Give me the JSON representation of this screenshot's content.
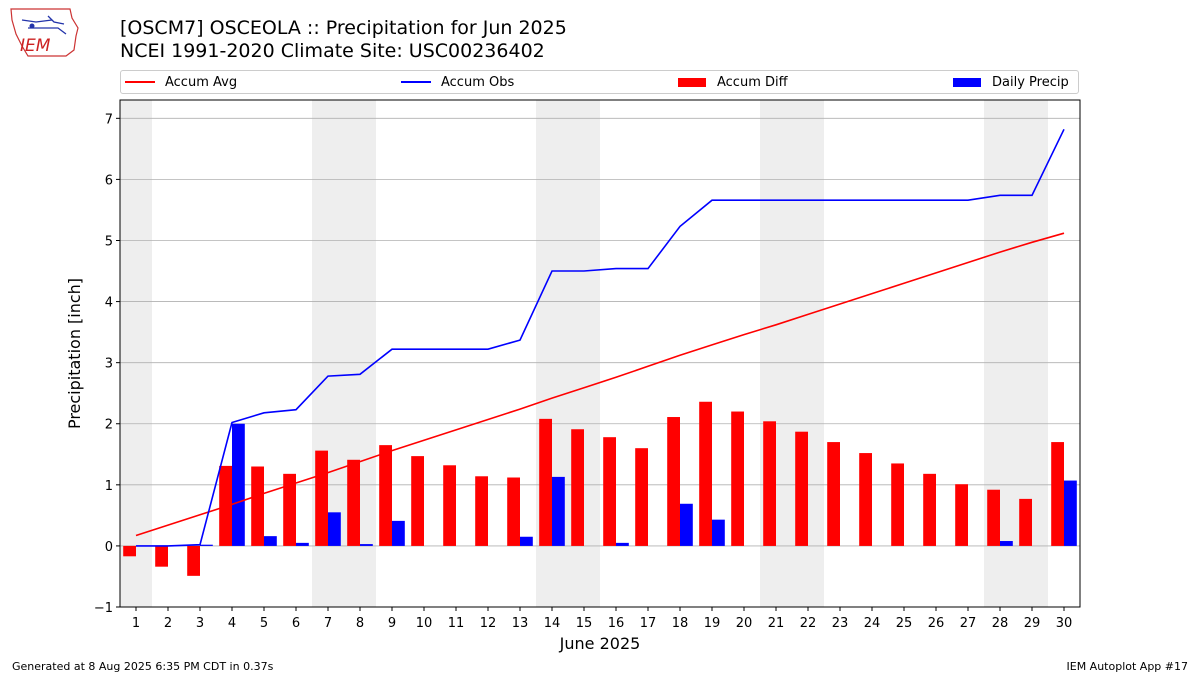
{
  "header": {
    "title_line1": "[OSCM7] OSCEOLA :: Precipitation for Jun 2025",
    "title_line2": "NCEI 1991-2020 Climate Site: USC00236402",
    "logo_text": "IEM"
  },
  "footer": {
    "left": "Generated at 8 Aug 2025 6:35 PM CDT in 0.37s",
    "right": "IEM Autoplot App #17"
  },
  "colors": {
    "accum_avg": "#ff0000",
    "accum_obs": "#0000ff",
    "accum_diff": "#ff0000",
    "daily_precip": "#0000ff",
    "weekend_shade": "#eeeeee",
    "grid": "#b0b0b0"
  },
  "chart_data": {
    "type": "bar",
    "xlabel": "June 2025",
    "ylabel": "Precipitation [inch]",
    "xlim": [
      0.5,
      30.5
    ],
    "ylim": [
      -1.0,
      7.3
    ],
    "yticks": [
      -1,
      0,
      1,
      2,
      3,
      4,
      5,
      6,
      7
    ],
    "ytick_labels": [
      "−1",
      "0",
      "1",
      "2",
      "3",
      "4",
      "5",
      "6",
      "7"
    ],
    "grid": "horizontal",
    "legend_placement": "top",
    "days": [
      1,
      2,
      3,
      4,
      5,
      6,
      7,
      8,
      9,
      10,
      11,
      12,
      13,
      14,
      15,
      16,
      17,
      18,
      19,
      20,
      21,
      22,
      23,
      24,
      25,
      26,
      27,
      28,
      29,
      30
    ],
    "weekend_days": [
      1,
      7,
      8,
      14,
      15,
      21,
      22,
      28,
      29
    ],
    "series": [
      {
        "name": "Accum Avg",
        "kind": "line",
        "values": [
          0.17,
          0.34,
          0.51,
          0.68,
          0.86,
          1.03,
          1.2,
          1.38,
          1.56,
          1.73,
          1.9,
          2.07,
          2.24,
          2.42,
          2.59,
          2.76,
          2.94,
          3.12,
          3.29,
          3.46,
          3.62,
          3.79,
          3.96,
          4.13,
          4.3,
          4.47,
          4.64,
          4.81,
          4.97,
          5.12
        ]
      },
      {
        "name": "Accum Obs",
        "kind": "line",
        "values": [
          0.0,
          0.0,
          0.02,
          2.02,
          2.18,
          2.23,
          2.78,
          2.81,
          3.22,
          3.22,
          3.22,
          3.22,
          3.37,
          4.5,
          4.5,
          4.54,
          4.54,
          5.23,
          5.66,
          5.66,
          5.66,
          5.66,
          5.66,
          5.66,
          5.66,
          5.66,
          5.66,
          5.74,
          5.74,
          6.82
        ]
      },
      {
        "name": "Accum Diff",
        "kind": "bar",
        "values": [
          -0.17,
          -0.34,
          -0.49,
          1.31,
          1.3,
          1.18,
          1.56,
          1.41,
          1.65,
          1.47,
          1.32,
          1.14,
          1.12,
          2.08,
          1.91,
          1.78,
          1.6,
          2.11,
          2.36,
          2.2,
          2.04,
          1.87,
          1.7,
          1.52,
          1.35,
          1.18,
          1.01,
          0.92,
          0.77,
          1.7
        ]
      },
      {
        "name": "Daily Precip",
        "kind": "bar",
        "values": [
          0.0,
          0.0,
          0.02,
          2.0,
          0.16,
          0.05,
          0.55,
          0.03,
          0.41,
          0.0,
          0.0,
          0.0,
          0.15,
          1.13,
          0.0,
          0.05,
          0.0,
          0.69,
          0.43,
          0.0,
          0.0,
          0.0,
          0.0,
          0.0,
          0.0,
          0.0,
          0.0,
          0.08,
          0.0,
          1.07
        ]
      }
    ]
  }
}
